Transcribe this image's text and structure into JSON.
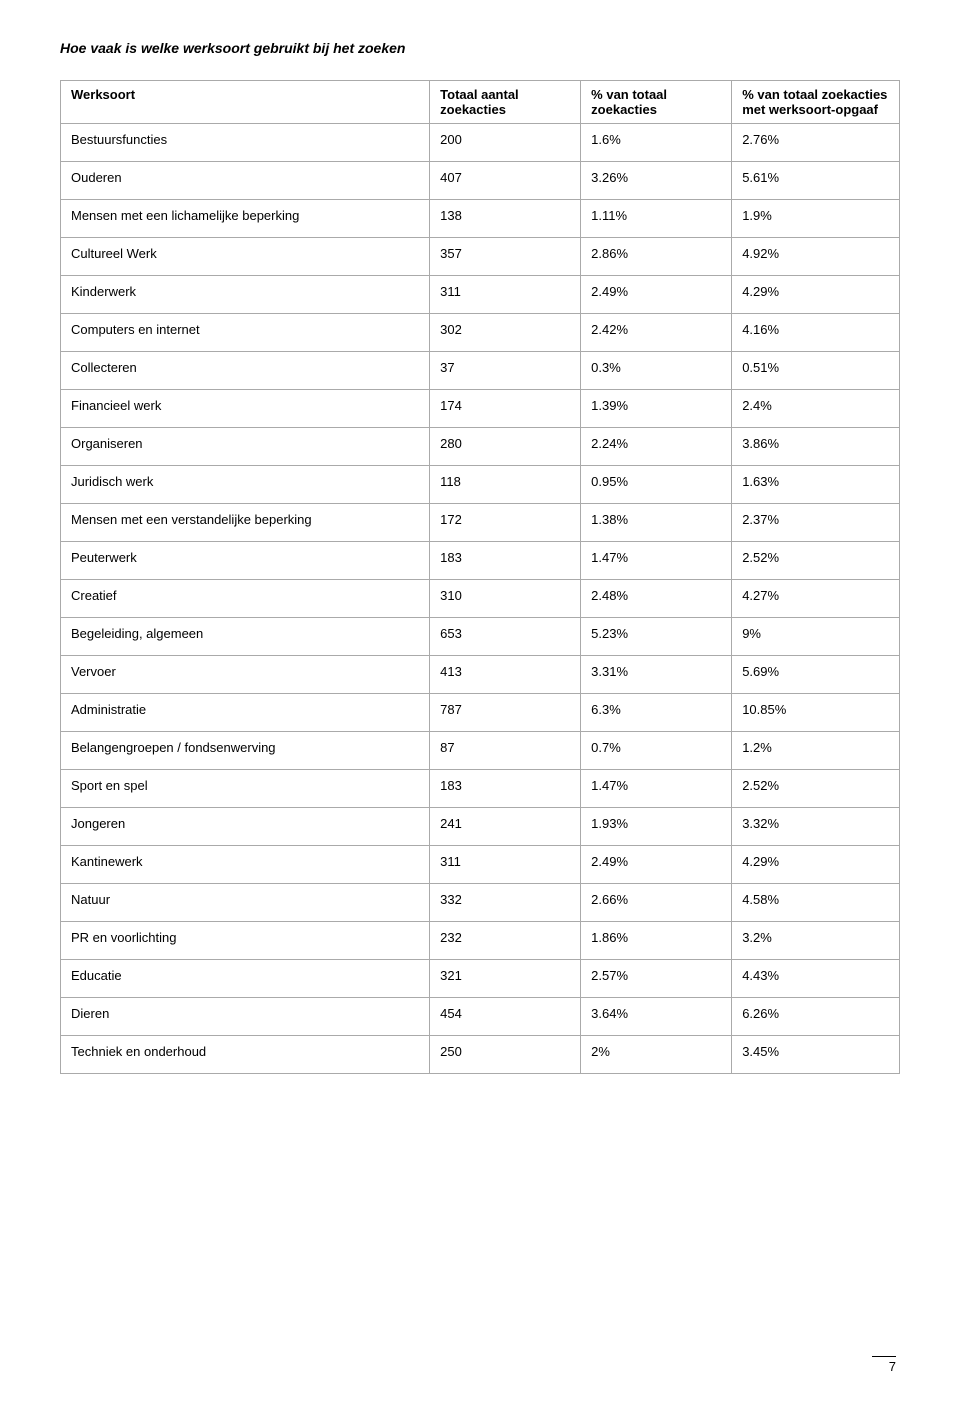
{
  "title": "Hoe vaak is welke werksoort gebruikt bij het zoeken",
  "headers": {
    "c0": "Werksoort",
    "c1": "Totaal aantal zoekacties",
    "c2": "% van totaal zoekacties",
    "c3": "% van totaal zoekacties met werksoort-opgaaf"
  },
  "rows": [
    {
      "c0": "Bestuursfuncties",
      "c1": "200",
      "c2": "1.6%",
      "c3": "2.76%"
    },
    {
      "c0": "Ouderen",
      "c1": "407",
      "c2": "3.26%",
      "c3": "5.61%"
    },
    {
      "c0": "Mensen met een lichamelijke beperking",
      "c1": "138",
      "c2": "1.11%",
      "c3": "1.9%"
    },
    {
      "c0": "Cultureel Werk",
      "c1": "357",
      "c2": "2.86%",
      "c3": "4.92%"
    },
    {
      "c0": "Kinderwerk",
      "c1": "311",
      "c2": "2.49%",
      "c3": "4.29%"
    },
    {
      "c0": "Computers en internet",
      "c1": "302",
      "c2": "2.42%",
      "c3": "4.16%"
    },
    {
      "c0": "Collecteren",
      "c1": "37",
      "c2": "0.3%",
      "c3": "0.51%"
    },
    {
      "c0": "Financieel werk",
      "c1": "174",
      "c2": "1.39%",
      "c3": "2.4%"
    },
    {
      "c0": "Organiseren",
      "c1": "280",
      "c2": "2.24%",
      "c3": "3.86%"
    },
    {
      "c0": "Juridisch werk",
      "c1": "118",
      "c2": "0.95%",
      "c3": "1.63%"
    },
    {
      "c0": "Mensen met een verstandelijke beperking",
      "c1": "172",
      "c2": "1.38%",
      "c3": "2.37%"
    },
    {
      "c0": "Peuterwerk",
      "c1": "183",
      "c2": "1.47%",
      "c3": "2.52%"
    },
    {
      "c0": "Creatief",
      "c1": "310",
      "c2": "2.48%",
      "c3": "4.27%"
    },
    {
      "c0": "Begeleiding, algemeen",
      "c1": "653",
      "c2": "5.23%",
      "c3": "9%"
    },
    {
      "c0": "Vervoer",
      "c1": "413",
      "c2": "3.31%",
      "c3": "5.69%"
    },
    {
      "c0": "Administratie",
      "c1": "787",
      "c2": "6.3%",
      "c3": "10.85%"
    },
    {
      "c0": "Belangengroepen / fondsenwerving",
      "c1": "87",
      "c2": "0.7%",
      "c3": "1.2%"
    },
    {
      "c0": "Sport en spel",
      "c1": "183",
      "c2": "1.47%",
      "c3": "2.52%"
    },
    {
      "c0": "Jongeren",
      "c1": "241",
      "c2": "1.93%",
      "c3": "3.32%"
    },
    {
      "c0": "Kantinewerk",
      "c1": "311",
      "c2": "2.49%",
      "c3": "4.29%"
    },
    {
      "c0": "Natuur",
      "c1": "332",
      "c2": "2.66%",
      "c3": "4.58%"
    },
    {
      "c0": "PR en voorlichting",
      "c1": "232",
      "c2": "1.86%",
      "c3": "3.2%"
    },
    {
      "c0": "Educatie",
      "c1": "321",
      "c2": "2.57%",
      "c3": "4.43%"
    },
    {
      "c0": "Dieren",
      "c1": "454",
      "c2": "3.64%",
      "c3": "6.26%"
    },
    {
      "c0": "Techniek en onderhoud",
      "c1": "250",
      "c2": "2%",
      "c3": "3.45%"
    }
  ],
  "page_number": "7"
}
